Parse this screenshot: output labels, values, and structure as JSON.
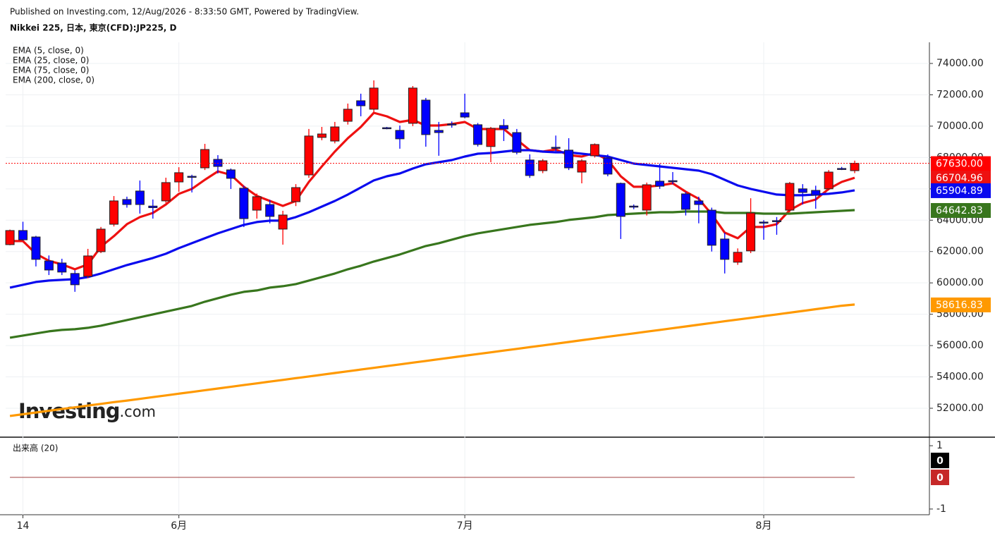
{
  "chart_data": {
    "type": "candlestick",
    "source": "Published on Investing.com, 12/Aug/2026 - 8:33:50 GMT, Powered by TradingView.",
    "title": "Nikkei 225, 日本, 東京(CFD):JP225, D",
    "logo": "Investing",
    "logo_suffix": ".com",
    "categories": [
      null,
      "14",
      null,
      null,
      null,
      null,
      null,
      null,
      null,
      null,
      null,
      null,
      null,
      "6月",
      null,
      null,
      null,
      null,
      null,
      null,
      null,
      null,
      null,
      null,
      null,
      null,
      null,
      null,
      null,
      null,
      null,
      null,
      null,
      null,
      null,
      "7月",
      null,
      null,
      null,
      null,
      null,
      null,
      null,
      null,
      null,
      null,
      null,
      null,
      null,
      null,
      null,
      null,
      null,
      null,
      null,
      null,
      null,
      null,
      "8月",
      null,
      null,
      null,
      null,
      null,
      null,
      null
    ],
    "open": [
      62440,
      63340,
      62930,
      61400,
      61270,
      60600,
      60420,
      61990,
      63740,
      65320,
      65860,
      64900,
      65230,
      66440,
      66800,
      67340,
      67880,
      67210,
      66040,
      64640,
      65000,
      63430,
      65180,
      66890,
      69280,
      69050,
      70310,
      71620,
      71080,
      69900,
      69730,
      70180,
      71660,
      69730,
      70140,
      70850,
      70090,
      68700,
      70040,
      69590,
      67840,
      67160,
      68650,
      68470,
      67070,
      68110,
      67970,
      66350,
      64900,
      64640,
      66490,
      66520,
      65680,
      65230,
      64640,
      62800,
      61320,
      62040,
      63880,
      63970,
      64640,
      66000,
      65900,
      66000,
      67300,
      67160
    ],
    "high": [
      63400,
      63900,
      63000,
      61750,
      61540,
      60800,
      62170,
      63570,
      65540,
      65500,
      66530,
      65320,
      66710,
      67380,
      66900,
      68870,
      68150,
      67300,
      66200,
      65700,
      65300,
      64600,
      66300,
      69820,
      69950,
      70270,
      71440,
      72070,
      72920,
      69950,
      70040,
      72560,
      71800,
      70270,
      70300,
      72070,
      70200,
      69950,
      70450,
      69820,
      68200,
      67900,
      69400,
      69230,
      67900,
      68900,
      68200,
      66400,
      65000,
      66400,
      67610,
      67070,
      65800,
      65500,
      64800,
      63200,
      62200,
      65400,
      64000,
      64200,
      66440,
      66300,
      66200,
      67200,
      67400,
      67800
    ],
    "low": [
      62400,
      62700,
      61050,
      60500,
      60500,
      59430,
      60300,
      61900,
      63600,
      64800,
      64420,
      64100,
      65100,
      65810,
      65770,
      67200,
      66980,
      65990,
      63560,
      64100,
      63800,
      62440,
      64900,
      66700,
      69100,
      68900,
      70100,
      70630,
      70900,
      69800,
      68560,
      70000,
      68690,
      68110,
      69900,
      70500,
      68700,
      67700,
      69050,
      68200,
      66700,
      67000,
      68400,
      67200,
      66350,
      68000,
      66800,
      62800,
      64700,
      64300,
      66000,
      66300,
      64300,
      63800,
      62000,
      60600,
      61150,
      61900,
      62750,
      63070,
      64500,
      65000,
      64730,
      65900,
      67200,
      67000
    ],
    "close": [
      63340,
      62750,
      61500,
      60820,
      60690,
      59880,
      61720,
      63430,
      65230,
      65000,
      65000,
      64800,
      66400,
      67030,
      66760,
      68510,
      67430,
      66670,
      64100,
      65500,
      64240,
      64330,
      66080,
      69370,
      69500,
      69950,
      71080,
      71300,
      72430,
      69860,
      69190,
      72430,
      69460,
      69590,
      70130,
      70580,
      68830,
      69860,
      69820,
      68330,
      66850,
      67790,
      68600,
      67340,
      67790,
      68830,
      66940,
      64240,
      64860,
      66260,
      66170,
      66490,
      64690,
      65000,
      62400,
      61500,
      61950,
      64460,
      63850,
      63950,
      66350,
      65770,
      65590,
      67070,
      67270,
      67630
    ],
    "close_label": "67630.00",
    "up_color": "#ff0000",
    "down_color": "#0000ff",
    "series": [
      {
        "name": "EMA (5, close, 0)",
        "color": "#ee1111",
        "last_label": "66704.96",
        "values": [
          62665,
          62665,
          61855,
          61406,
          61181,
          60866,
          61181,
          62305,
          62980,
          63745,
          64195,
          64464,
          65004,
          65679,
          65994,
          66578,
          67118,
          66893,
          66129,
          65544,
          65229,
          64914,
          65229,
          66443,
          67433,
          68378,
          69232,
          69952,
          70852,
          70627,
          70267,
          70402,
          70042,
          70042,
          70132,
          70267,
          69817,
          69817,
          69817,
          69142,
          68467,
          68378,
          68512,
          68153,
          68063,
          68288,
          67838,
          66803,
          66129,
          66129,
          66218,
          66353,
          65814,
          65364,
          64374,
          63205,
          62845,
          63565,
          63565,
          63745,
          64644,
          65094,
          65319,
          65994,
          66443,
          66704.96
        ]
      },
      {
        "name": "EMA (25, close, 0)",
        "color": "#0a0aee",
        "last_label": "65904.89",
        "values": [
          59696,
          59876,
          60056,
          60146,
          60191,
          60236,
          60371,
          60596,
          60866,
          61136,
          61361,
          61586,
          61856,
          62215,
          62530,
          62845,
          63160,
          63430,
          63700,
          63880,
          63970,
          63970,
          64195,
          64509,
          64869,
          65229,
          65634,
          66084,
          66534,
          66803,
          66983,
          67298,
          67568,
          67703,
          67838,
          68063,
          68243,
          68288,
          68378,
          68467,
          68467,
          68378,
          68333,
          68333,
          68243,
          68153,
          68063,
          67838,
          67613,
          67523,
          67433,
          67343,
          67253,
          67163,
          66938,
          66578,
          66218,
          65994,
          65814,
          65634,
          65589,
          65589,
          65634,
          65679,
          65769,
          65904.89
        ]
      },
      {
        "name": "EMA (75, close, 0)",
        "color": "#38761d",
        "last_label": "64642.83",
        "values": [
          56503,
          56637,
          56772,
          56907,
          56997,
          57042,
          57132,
          57267,
          57447,
          57627,
          57807,
          57987,
          58167,
          58347,
          58527,
          58797,
          59022,
          59247,
          59426,
          59516,
          59696,
          59786,
          59921,
          60146,
          60371,
          60596,
          60866,
          61091,
          61361,
          61586,
          61811,
          62081,
          62350,
          62530,
          62755,
          62980,
          63160,
          63295,
          63430,
          63565,
          63700,
          63790,
          63880,
          64015,
          64104,
          64194,
          64329,
          64374,
          64419,
          64464,
          64509,
          64509,
          64554,
          64554,
          64554,
          64464,
          64464,
          64464,
          64419,
          64419,
          64419,
          64464,
          64509,
          64554,
          64599,
          64642.83
        ]
      },
      {
        "name": "EMA (200, close, 0)",
        "color": "#ff9900",
        "last_label": "58616.83",
        "values": [
          51510,
          51620,
          51730,
          51840,
          51950,
          52060,
          52170,
          52280,
          52390,
          52490,
          52600,
          52710,
          52820,
          52930,
          53040,
          53150,
          53260,
          53370,
          53480,
          53590,
          53700,
          53810,
          53920,
          54030,
          54140,
          54250,
          54360,
          54470,
          54580,
          54690,
          54800,
          54910,
          55020,
          55130,
          55240,
          55350,
          55460,
          55570,
          55680,
          55790,
          55900,
          56010,
          56120,
          56230,
          56340,
          56450,
          56560,
          56670,
          56780,
          56890,
          57000,
          57110,
          57220,
          57330,
          57440,
          57550,
          57660,
          57770,
          57880,
          57990,
          58100,
          58210,
          58320,
          58430,
          58540,
          58616.83
        ]
      }
    ],
    "xlim": [
      -0.33,
      70.75
    ],
    "ylim": [
      50156,
      75349
    ],
    "yticks": [
      {
        "value": 74000,
        "label": "74000.00"
      },
      {
        "value": 72000,
        "label": "72000.00"
      },
      {
        "value": 70000,
        "label": "70000.00"
      },
      {
        "value": 68000,
        "label": "68000.00"
      },
      {
        "value": 66000,
        "label": "66000.00"
      },
      {
        "value": 64000,
        "label": "64000.00"
      },
      {
        "value": 62000,
        "label": "62000.00"
      },
      {
        "value": 60000,
        "label": "60000.00"
      },
      {
        "value": 58000,
        "label": "58000.00"
      },
      {
        "value": 56000,
        "label": "56000.00"
      },
      {
        "value": 54000,
        "label": "54000.00"
      },
      {
        "value": 52000,
        "label": "52000.00"
      }
    ],
    "grid": true,
    "volume": {
      "title": "出来高 (20)",
      "ylim": [
        -1.18,
        1.27
      ],
      "yticks": [
        1,
        -1
      ],
      "series": [
        {
          "color": "#000000",
          "last_label": "0",
          "values": [
            0,
            0,
            0,
            0,
            0,
            0,
            0,
            0,
            0,
            0,
            0,
            0,
            0,
            0,
            0,
            0,
            0,
            0,
            0,
            0,
            0,
            0,
            0,
            0,
            0,
            0,
            0,
            0,
            0,
            0,
            0,
            0,
            0,
            0,
            0,
            0,
            0,
            0,
            0,
            0,
            0,
            0,
            0,
            0,
            0,
            0,
            0,
            0,
            0,
            0,
            0,
            0,
            0,
            0,
            0,
            0,
            0,
            0,
            0,
            0,
            0,
            0,
            0,
            0,
            0,
            0
          ]
        },
        {
          "color": "#c62828",
          "last_label": "0",
          "values": [
            0,
            0,
            0,
            0,
            0,
            0,
            0,
            0,
            0,
            0,
            0,
            0,
            0,
            0,
            0,
            0,
            0,
            0,
            0,
            0,
            0,
            0,
            0,
            0,
            0,
            0,
            0,
            0,
            0,
            0,
            0,
            0,
            0,
            0,
            0,
            0,
            0,
            0,
            0,
            0,
            0,
            0,
            0,
            0,
            0,
            0,
            0,
            0,
            0,
            0,
            0,
            0,
            0,
            0,
            0,
            0,
            0,
            0,
            0,
            0,
            0,
            0,
            0,
            0,
            0,
            0
          ]
        }
      ]
    }
  }
}
